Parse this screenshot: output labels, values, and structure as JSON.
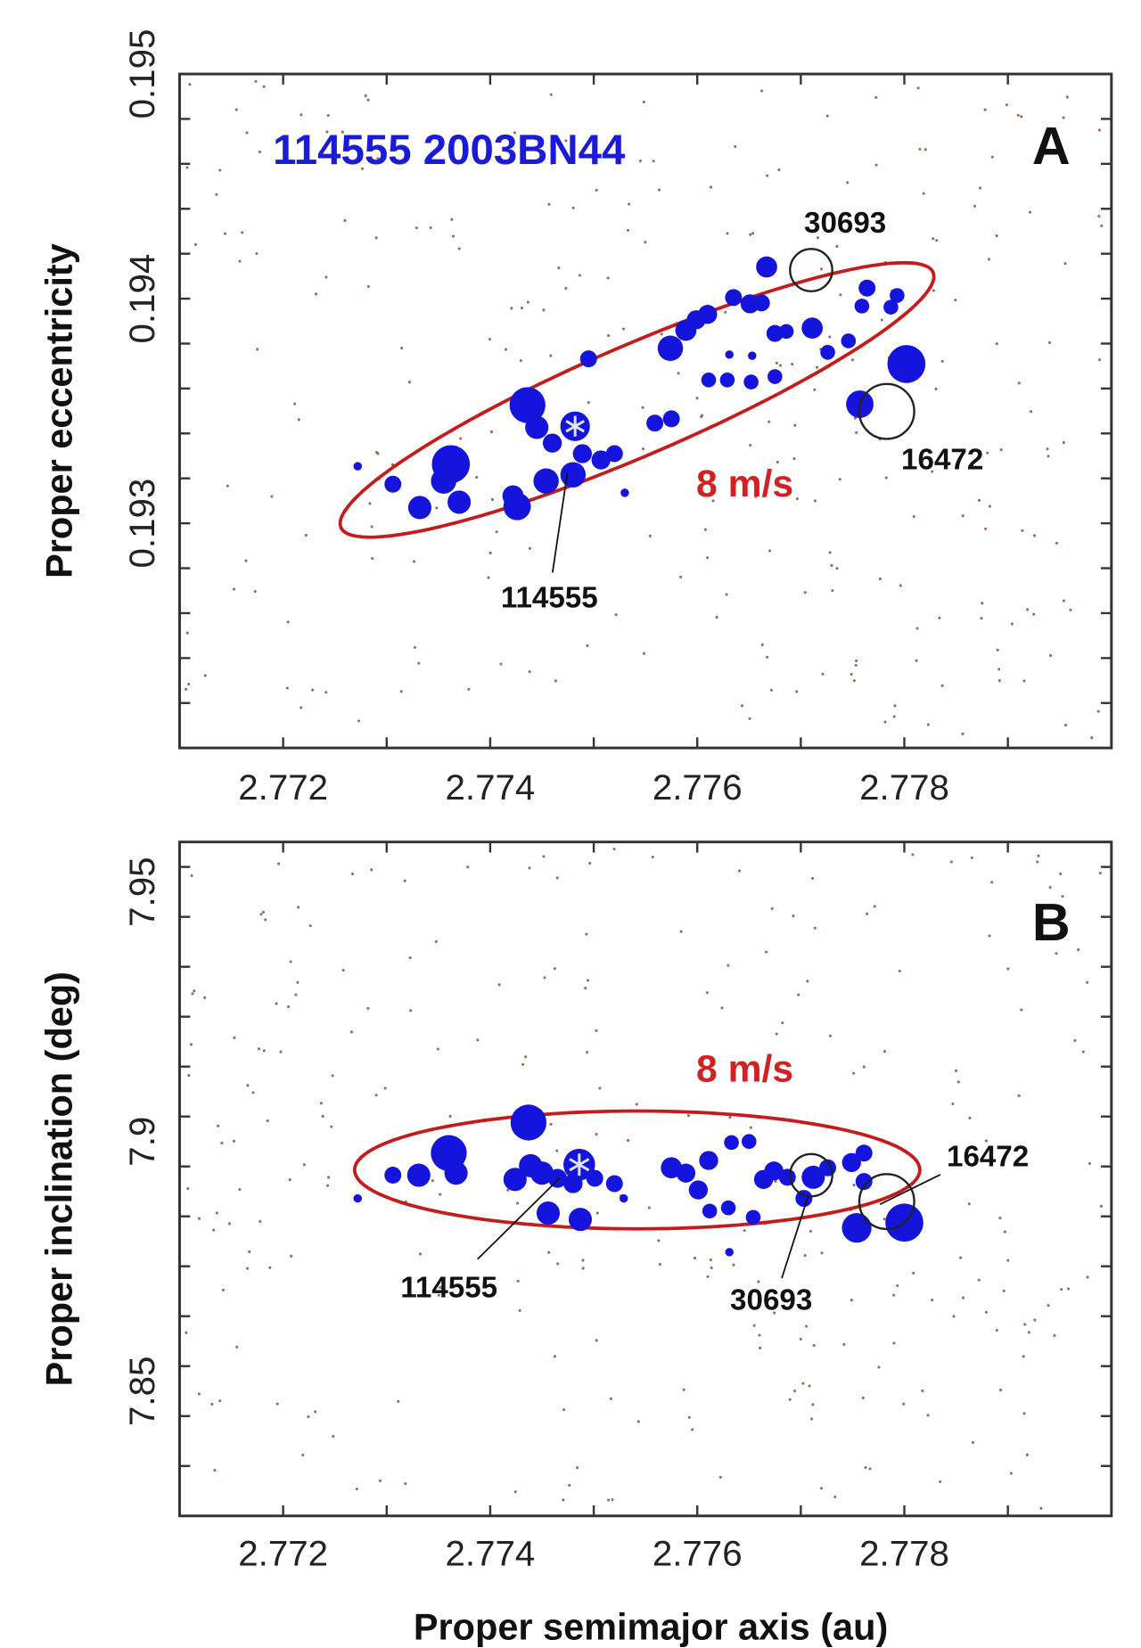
{
  "colors": {
    "points": "#1414dc",
    "ellipse": "#c41c1c",
    "velocity_label": "#d42020",
    "title": "#1a1ad8",
    "background_dots": "#9a6a5a"
  },
  "chart_data": [
    {
      "panel_label": "A",
      "type": "scatter",
      "title": "114555 2003BN44",
      "xlabel": "",
      "ylabel": "Proper eccentricity",
      "xlim": [
        2.771,
        2.78
      ],
      "ylim": [
        0.192,
        0.195
      ],
      "xticks": [
        {
          "value": 2.772,
          "label": "2.772"
        },
        {
          "value": 2.774,
          "label": "2.774"
        },
        {
          "value": 2.776,
          "label": "2.776"
        },
        {
          "value": 2.778,
          "label": "2.778"
        }
      ],
      "yticks": [
        {
          "value": 0.195,
          "label": "0.195"
        },
        {
          "value": 0.194,
          "label": "0.194"
        },
        {
          "value": 0.193,
          "label": "0.193"
        }
      ],
      "x_minor_step": 0.001,
      "y_minor_step": 0.0002,
      "points_format": [
        "x",
        "y",
        "marker_size"
      ],
      "points": [
        [
          2.77272,
          0.193254,
          4
        ],
        [
          2.77306,
          0.193174,
          8
        ],
        [
          2.77332,
          0.19307,
          11
        ],
        [
          2.77362,
          0.193263,
          18
        ],
        [
          2.77355,
          0.193188,
          12
        ],
        [
          2.7737,
          0.193094,
          11
        ],
        [
          2.77426,
          0.193075,
          13
        ],
        [
          2.77422,
          0.193122,
          10
        ],
        [
          2.77436,
          0.193526,
          17
        ],
        [
          2.77445,
          0.193427,
          11
        ],
        [
          2.7746,
          0.193357,
          9
        ],
        [
          2.77482,
          0.193432,
          14
        ],
        [
          2.7748,
          0.193216,
          12
        ],
        [
          2.77454,
          0.193188,
          12
        ],
        [
          2.77489,
          0.19331,
          9
        ],
        [
          2.77507,
          0.193282,
          9
        ],
        [
          2.7752,
          0.19331,
          8
        ],
        [
          2.7753,
          0.193136,
          4
        ],
        [
          2.77495,
          0.193732,
          8
        ],
        [
          2.77559,
          0.193446,
          8
        ],
        [
          2.77575,
          0.193465,
          8
        ],
        [
          2.77574,
          0.193779,
          12
        ],
        [
          2.77589,
          0.193859,
          10
        ],
        [
          2.77599,
          0.193906,
          9
        ],
        [
          2.7761,
          0.19393,
          9
        ],
        [
          2.77635,
          0.194005,
          8
        ],
        [
          2.77651,
          0.193977,
          9
        ],
        [
          2.77662,
          0.193981,
          8
        ],
        [
          2.77667,
          0.194141,
          10
        ],
        [
          2.77611,
          0.193638,
          7
        ],
        [
          2.77629,
          0.193638,
          7
        ],
        [
          2.77652,
          0.193629,
          7
        ],
        [
          2.77675,
          0.193653,
          7
        ],
        [
          2.77631,
          0.193751,
          4
        ],
        [
          2.77653,
          0.193746,
          4
        ],
        [
          2.77675,
          0.193845,
          8
        ],
        [
          2.77686,
          0.193854,
          7
        ],
        [
          2.77711,
          0.193869,
          10
        ],
        [
          2.77726,
          0.193761,
          7
        ],
        [
          2.77746,
          0.193812,
          7
        ],
        [
          2.77764,
          0.194047,
          8
        ],
        [
          2.77759,
          0.193967,
          7
        ],
        [
          2.77793,
          0.194014,
          7
        ],
        [
          2.77787,
          0.193962,
          7
        ],
        [
          2.77802,
          0.193709,
          18
        ],
        [
          2.77757,
          0.19353,
          13
        ]
      ],
      "highlight_index": 11,
      "open_circles": [
        {
          "name": "30693",
          "x": 2.7771,
          "y": 0.194127,
          "marker_size": 20
        },
        {
          "name": "16472",
          "x": 2.77783,
          "y": 0.193498,
          "marker_size": 26
        }
      ],
      "ellipse": {
        "center": [
          2.775418,
          0.193549
        ],
        "major_tip": [
          2.778278,
          0.194117
        ],
        "minor_tip": [
          2.775629,
          0.193324
        ]
      },
      "ellipse_label": "8 m/s",
      "annotations": [
        {
          "text": "30693"
        },
        {
          "text": "16472"
        },
        {
          "text": "114555"
        }
      ]
    },
    {
      "panel_label": "B",
      "type": "scatter",
      "title": "",
      "xlabel": "Proper semimajor axis (au)",
      "ylabel": "Proper inclination (deg)",
      "xlim": [
        2.771,
        2.78
      ],
      "ylim": [
        7.825,
        7.96
      ],
      "xticks": [
        {
          "value": 2.772,
          "label": "2.772"
        },
        {
          "value": 2.774,
          "label": "2.774"
        },
        {
          "value": 2.776,
          "label": "2.776"
        },
        {
          "value": 2.778,
          "label": "2.778"
        }
      ],
      "yticks": [
        {
          "value": 7.95,
          "label": "7.95"
        },
        {
          "value": 7.9,
          "label": "7.9"
        },
        {
          "value": 7.85,
          "label": "7.85"
        }
      ],
      "x_minor_step": 0.001,
      "y_minor_step": 0.01,
      "points_format": [
        "x",
        "y",
        "marker_size"
      ],
      "points": [
        [
          2.77272,
          7.8886,
          4
        ],
        [
          2.77306,
          7.89325,
          8
        ],
        [
          2.77331,
          7.89325,
          11
        ],
        [
          2.7736,
          7.89768,
          17
        ],
        [
          2.77367,
          7.89367,
          11
        ],
        [
          2.77437,
          7.9038,
          17
        ],
        [
          2.77424,
          7.8924,
          11
        ],
        [
          2.77439,
          7.89515,
          11
        ],
        [
          2.7745,
          7.89367,
          11
        ],
        [
          2.77456,
          7.88565,
          11
        ],
        [
          2.77486,
          7.89536,
          15
        ],
        [
          2.77465,
          7.89262,
          9
        ],
        [
          2.7748,
          7.89156,
          9
        ],
        [
          2.77501,
          7.89262,
          8
        ],
        [
          2.7752,
          7.89156,
          8
        ],
        [
          2.77487,
          7.88439,
          11
        ],
        [
          2.77529,
          7.8886,
          4
        ],
        [
          2.77575,
          7.89473,
          10
        ],
        [
          2.77589,
          7.89367,
          9
        ],
        [
          2.77601,
          7.8903,
          9
        ],
        [
          2.77611,
          7.8962,
          9
        ],
        [
          2.77633,
          7.89979,
          7
        ],
        [
          2.7765,
          7.9,
          7
        ],
        [
          2.77612,
          7.88607,
          7
        ],
        [
          2.7763,
          7.88671,
          7
        ],
        [
          2.77654,
          7.88481,
          7
        ],
        [
          2.77631,
          7.87784,
          4
        ],
        [
          2.77664,
          7.8924,
          9
        ],
        [
          2.77674,
          7.89409,
          9
        ],
        [
          2.77687,
          7.89283,
          8
        ],
        [
          2.77703,
          7.8886,
          8
        ],
        [
          2.77712,
          7.89283,
          11
        ],
        [
          2.77726,
          7.89473,
          8
        ],
        [
          2.77749,
          7.89578,
          9
        ],
        [
          2.77761,
          7.89768,
          8
        ],
        [
          2.77754,
          7.8827,
          14
        ],
        [
          2.778,
          7.88375,
          18
        ],
        [
          2.77761,
          7.89198,
          8
        ]
      ],
      "highlight_index": 10,
      "open_circles": [
        {
          "name": "30693",
          "x": 2.7771,
          "y": 7.89325,
          "marker_size": 20
        },
        {
          "name": "16472",
          "x": 2.77783,
          "y": 7.88797,
          "marker_size": 26
        }
      ],
      "ellipse": {
        "center": [
          2.77542,
          7.8943
        ],
        "major_tip": [
          2.77815,
          7.8943
        ],
        "minor_tip": [
          2.77542,
          7.9061
        ]
      },
      "ellipse_label": "8 m/s",
      "annotations": [
        {
          "text": "114555"
        },
        {
          "text": "30693"
        },
        {
          "text": "16472"
        }
      ]
    }
  ]
}
